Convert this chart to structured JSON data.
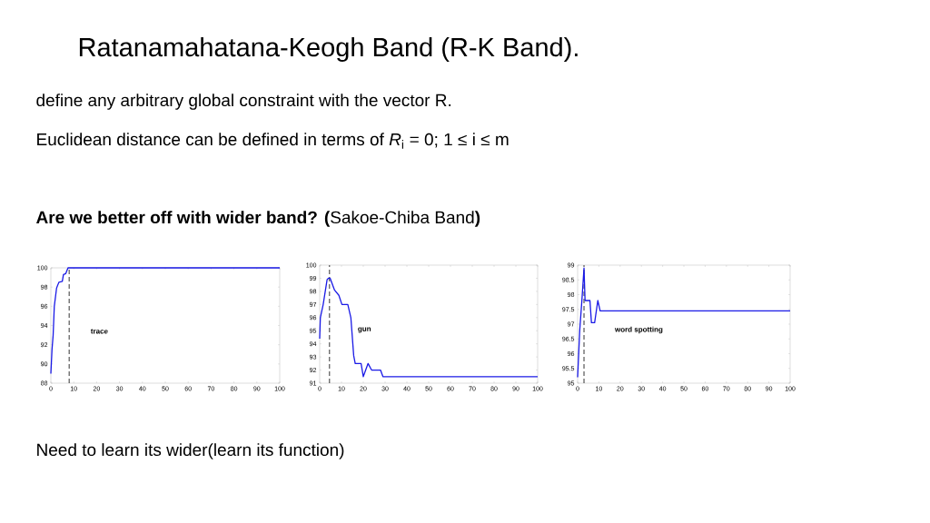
{
  "chart_data": [
    {
      "type": "line",
      "title": "Ratanamahatana-Keogh Band (R-K Band).",
      "annotations": [
        "define any arbitrary global constraint with the vector R.",
        "Euclidean distance can be defined in terms of *R*$_{i}$ = 0; 1 ≤ i ≤ m",
        "**Are we better off with wider band? (**Sakoe-Chiba Band**)**",
        "Need to learn its wider(learn its function)",
        "trace"
      ],
      "x": [
        0,
        0.5,
        1,
        1.5,
        2.5,
        3.5,
        5,
        5.5,
        6.5,
        7.5,
        100
      ],
      "series": [
        {
          "color": "#1a1ae6",
          "values": [
            89,
            91.5,
            93,
            96,
            97.9,
            98.5,
            98.6,
            99.3,
            99.4,
            100,
            100
          ]
        }
      ],
      "xlim": [
        0,
        100
      ],
      "xticks": [
        0,
        10,
        20,
        30,
        40,
        50,
        60,
        70,
        80,
        90,
        100
      ],
      "ylim": [
        88,
        100
      ],
      "yticks": [
        88,
        90,
        92,
        94,
        96,
        98,
        100
      ],
      "ref_lines": [
        {
          "axis": "x",
          "value": 8,
          "color": "#000000",
          "line_style": "dashed"
        }
      ]
    },
    {
      "type": "line",
      "annotations": [
        "gun"
      ],
      "x": [
        0,
        0.3,
        1.6,
        3.4,
        4,
        4.8,
        6.8,
        8.8,
        10.2,
        12.9,
        14.3,
        15.6,
        16.3,
        19,
        20,
        22.2,
        23.8,
        27.9,
        29,
        100
      ],
      "series": [
        {
          "color": "#1a1ae6",
          "values": [
            94.4,
            96,
            97,
            98.9,
            99,
            99,
            98.1,
            97.7,
            97,
            97,
            96,
            93.1,
            92.5,
            92.5,
            91.5,
            92.5,
            92,
            92,
            91.5,
            91.5
          ]
        }
      ],
      "xlim": [
        0,
        100
      ],
      "xticks": [
        0,
        10,
        20,
        30,
        40,
        50,
        60,
        70,
        80,
        90,
        100
      ],
      "ylim": [
        91,
        100
      ],
      "yticks": [
        91,
        92,
        93,
        94,
        95,
        96,
        97,
        98,
        99,
        100
      ],
      "ref_lines": [
        {
          "axis": "x",
          "value": 4.5,
          "color": "#000000",
          "line_style": "dashed"
        }
      ]
    },
    {
      "type": "line",
      "annotations": [
        "word spotting"
      ],
      "x": [
        0,
        1,
        2,
        3,
        3.5,
        5.8,
        6.5,
        8,
        9.5,
        10.6,
        100
      ],
      "series": [
        {
          "color": "#1a1ae6",
          "values": [
            95.2,
            96.8,
            97.8,
            98.9,
            97.8,
            97.8,
            97.05,
            97.05,
            97.8,
            97.45,
            97.45
          ]
        }
      ],
      "xlim": [
        0,
        100
      ],
      "xticks": [
        0,
        10,
        20,
        30,
        40,
        50,
        60,
        70,
        80,
        90,
        100
      ],
      "ylim": [
        95,
        99
      ],
      "yticks": [
        95,
        95.5,
        96,
        96.5,
        97,
        97.5,
        98,
        98.5,
        99
      ],
      "ref_lines": [
        {
          "axis": "x",
          "value": 3,
          "color": "#000000",
          "line_style": "dashed"
        }
      ]
    }
  ]
}
